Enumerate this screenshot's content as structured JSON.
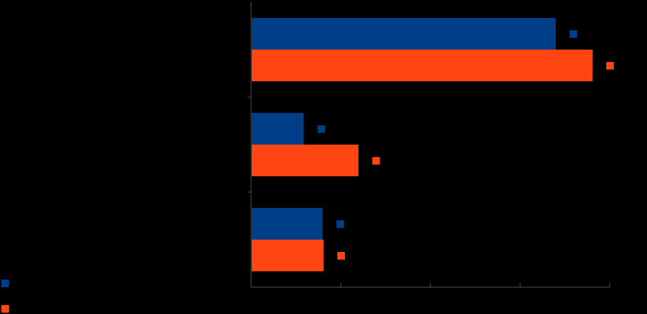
{
  "chart_data": {
    "type": "bar",
    "orientation": "horizontal",
    "categories": [
      "",
      "",
      ""
    ],
    "series": [
      {
        "name": "",
        "color": "#003f87",
        "values": [
          33.9,
          5.8,
          7.9
        ]
      },
      {
        "name": "",
        "color": "#ff4612",
        "values": [
          38.0,
          11.9,
          8.0
        ]
      }
    ],
    "xlim": [
      0,
      40
    ],
    "xticks": [
      0,
      10,
      20,
      30,
      40
    ],
    "grid": false,
    "legend": "bottom-left",
    "title": "",
    "xlabel": "",
    "ylabel": ""
  }
}
